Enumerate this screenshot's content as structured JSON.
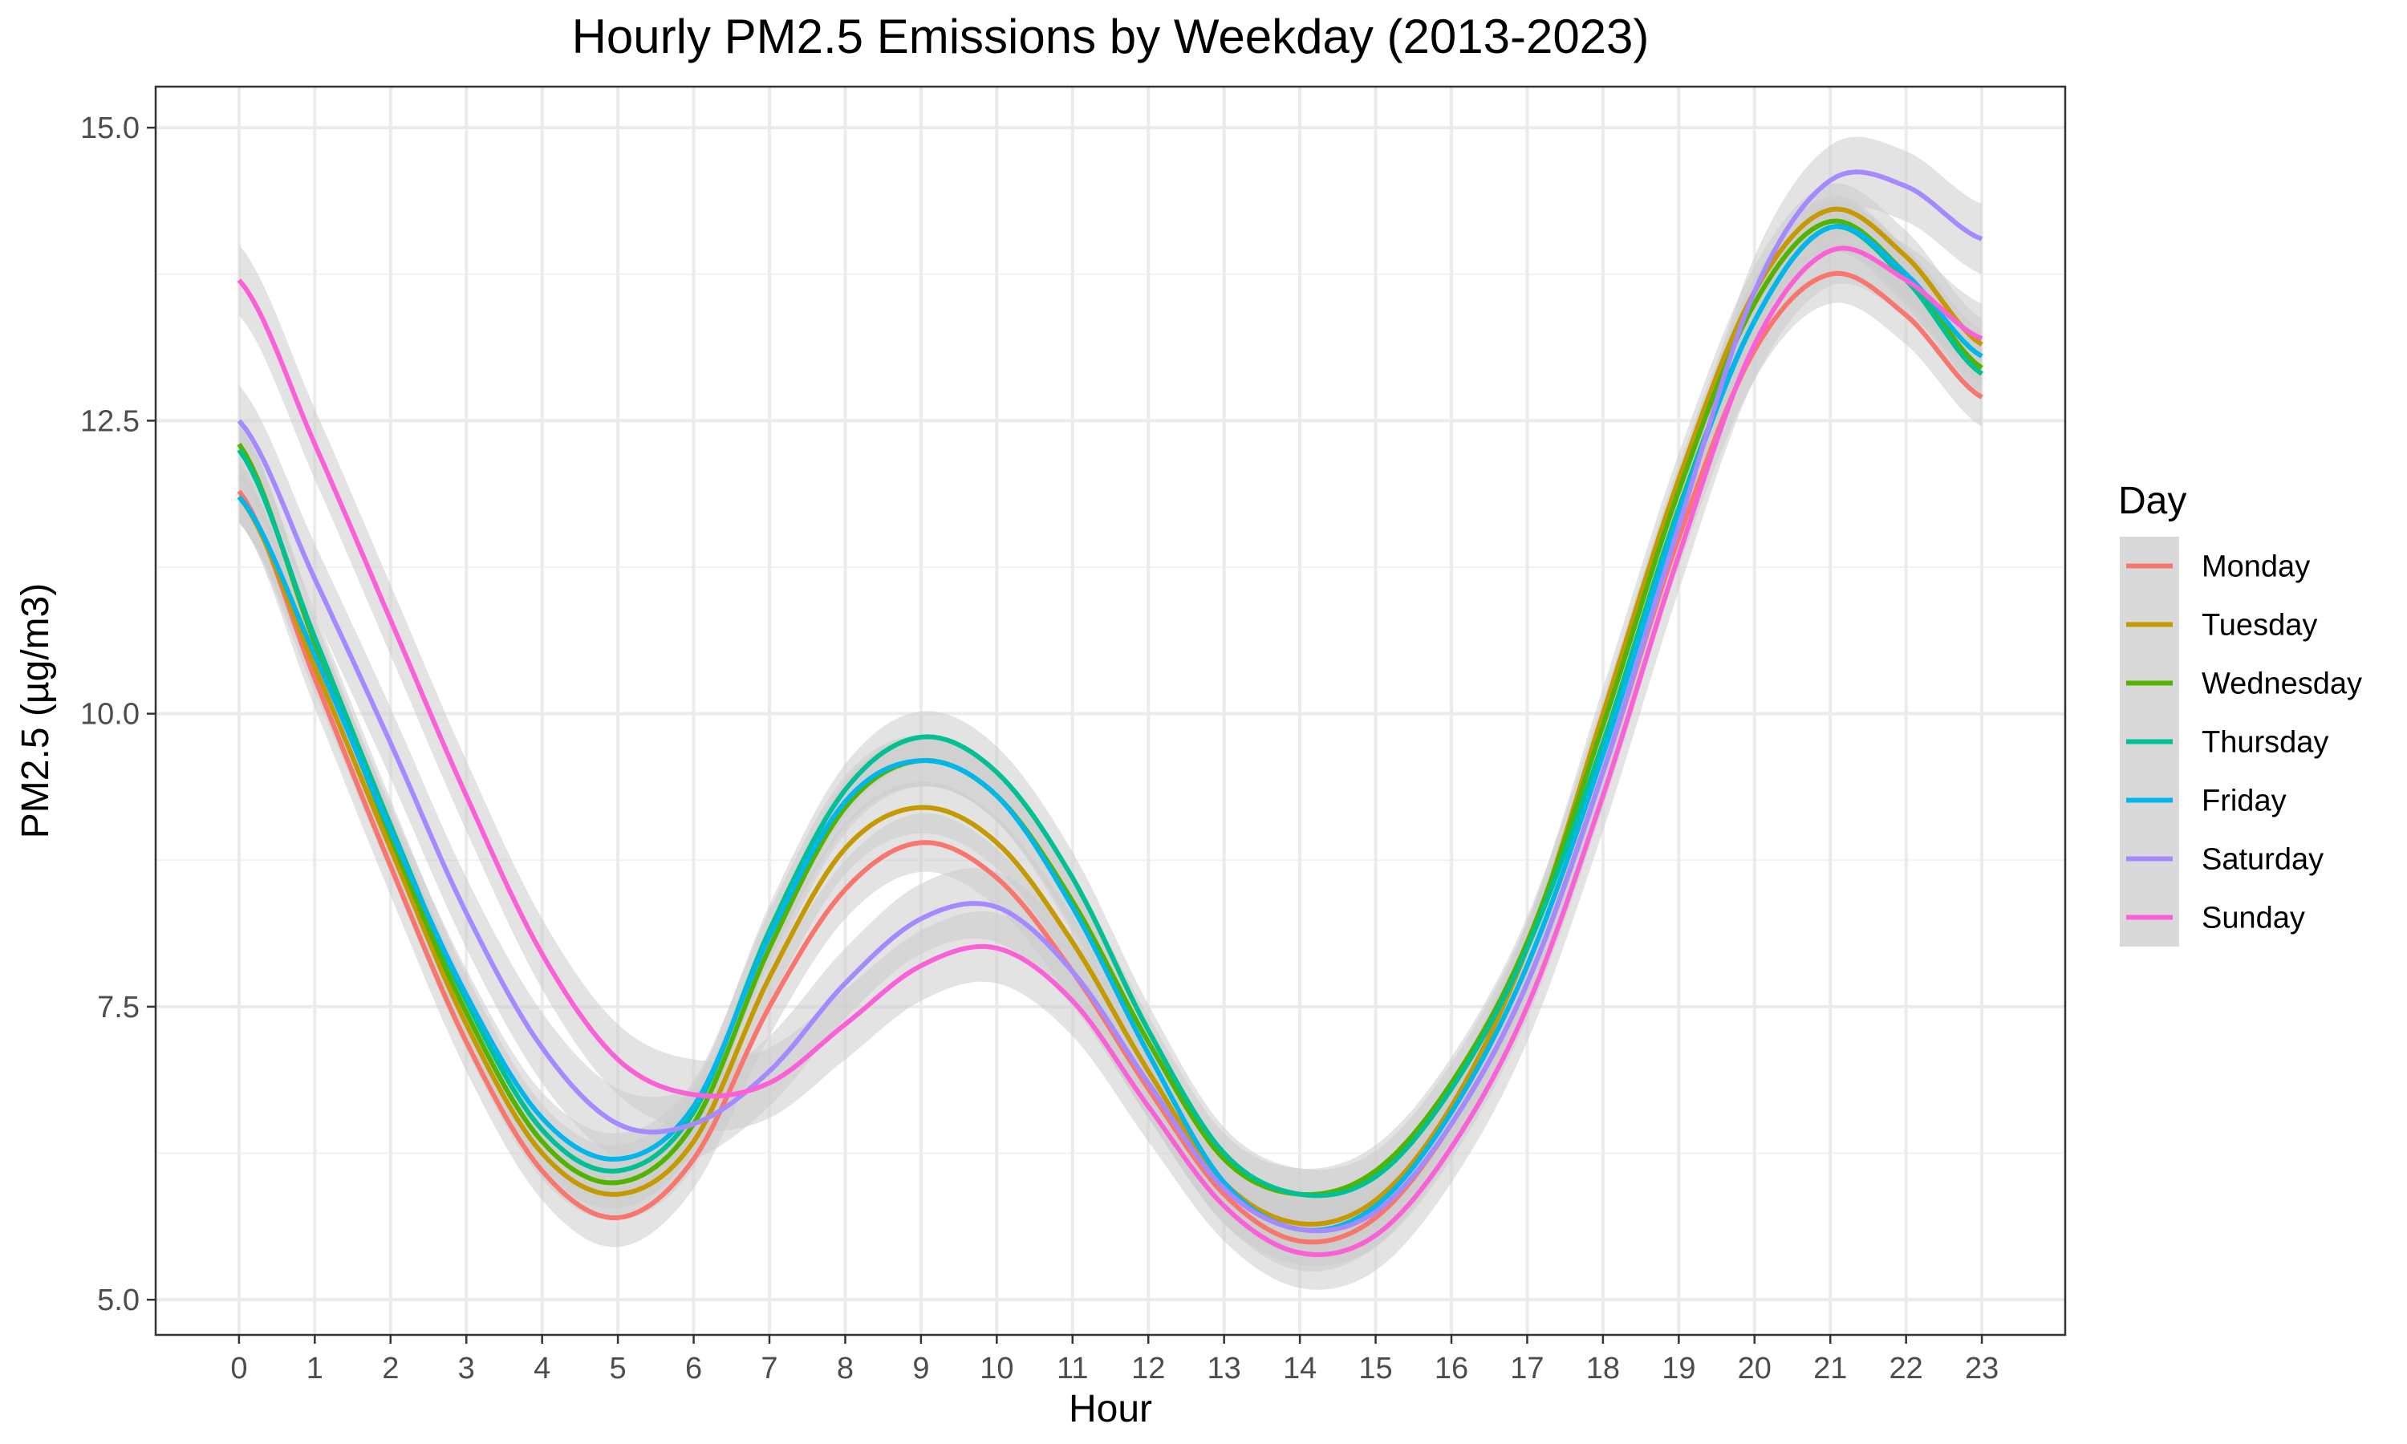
{
  "chart_data": {
    "type": "line",
    "title": "Hourly PM2.5 Emissions by Weekday (2013-2023)",
    "xlabel": "Hour",
    "ylabel": "PM2.5 (µg/m3)",
    "xlim": [
      -1.1,
      24.1
    ],
    "ylim": [
      4.7,
      15.35
    ],
    "x_ticks": [
      0,
      1,
      2,
      3,
      4,
      5,
      6,
      7,
      8,
      9,
      10,
      11,
      12,
      13,
      14,
      15,
      16,
      17,
      18,
      19,
      20,
      21,
      22,
      23
    ],
    "y_ticks": [
      5.0,
      7.5,
      10.0,
      12.5,
      15.0
    ],
    "y_tick_labels": [
      "5.0",
      "7.5",
      "10.0",
      "12.5",
      "15.0"
    ],
    "grid": true,
    "smoothed_with_confidence_band": true,
    "band_color": "#cccccc",
    "legend": {
      "title": "Day",
      "position": "right"
    },
    "x": [
      0,
      1,
      2,
      3,
      4,
      5,
      6,
      7,
      8,
      9,
      10,
      11,
      12,
      13,
      14,
      15,
      16,
      17,
      18,
      19,
      20,
      21,
      22,
      23
    ],
    "series": [
      {
        "name": "Monday",
        "color": "#F8766D",
        "values": [
          11.9,
          10.3,
          8.7,
          7.2,
          6.1,
          5.7,
          6.2,
          7.5,
          8.5,
          8.9,
          8.6,
          7.8,
          6.8,
          5.9,
          5.5,
          5.7,
          6.5,
          7.7,
          9.5,
          11.5,
          13.1,
          13.75,
          13.4,
          12.7
        ],
        "band": 0.25
      },
      {
        "name": "Tuesday",
        "color": "#C49A00",
        "values": [
          11.85,
          10.4,
          8.85,
          7.35,
          6.25,
          5.9,
          6.35,
          7.75,
          8.85,
          9.2,
          8.9,
          8.05,
          6.95,
          6.0,
          5.65,
          5.85,
          6.65,
          8.0,
          10.0,
          12.0,
          13.6,
          14.3,
          13.9,
          13.15
        ],
        "band": 0.22
      },
      {
        "name": "Wednesday",
        "color": "#53B400",
        "values": [
          12.3,
          10.6,
          8.95,
          7.45,
          6.35,
          6.0,
          6.5,
          8.0,
          9.2,
          9.6,
          9.3,
          8.4,
          7.2,
          6.2,
          5.9,
          6.1,
          6.85,
          8.05,
          9.9,
          11.9,
          13.5,
          14.2,
          13.75,
          12.95
        ],
        "band": 0.22
      },
      {
        "name": "Thursday",
        "color": "#00C094",
        "values": [
          12.25,
          10.65,
          9.05,
          7.55,
          6.45,
          6.1,
          6.6,
          8.15,
          9.35,
          9.8,
          9.5,
          8.6,
          7.3,
          6.25,
          5.9,
          6.05,
          6.8,
          8.0,
          9.75,
          11.75,
          13.35,
          14.15,
          13.7,
          12.9
        ],
        "band": 0.22
      },
      {
        "name": "Friday",
        "color": "#00B6EB",
        "values": [
          11.85,
          10.5,
          9.0,
          7.6,
          6.55,
          6.2,
          6.65,
          8.1,
          9.25,
          9.6,
          9.3,
          8.35,
          7.1,
          6.0,
          5.6,
          5.8,
          6.6,
          7.85,
          9.65,
          11.7,
          13.35,
          14.15,
          13.75,
          13.05
        ],
        "band": 0.22
      },
      {
        "name": "Saturday",
        "color": "#A58AFF",
        "values": [
          12.5,
          11.15,
          9.75,
          8.3,
          7.15,
          6.5,
          6.5,
          6.95,
          7.7,
          8.25,
          8.35,
          7.8,
          6.85,
          5.95,
          5.6,
          5.75,
          6.5,
          7.7,
          9.5,
          11.6,
          13.6,
          14.55,
          14.5,
          14.05
        ],
        "band": 0.3
      },
      {
        "name": "Sunday",
        "color": "#FB61D7",
        "values": [
          13.7,
          12.3,
          10.8,
          9.3,
          7.95,
          7.05,
          6.75,
          6.85,
          7.35,
          7.85,
          8.0,
          7.55,
          6.65,
          5.8,
          5.4,
          5.55,
          6.3,
          7.5,
          9.3,
          11.35,
          13.15,
          13.95,
          13.7,
          13.2
        ],
        "band": 0.3
      }
    ]
  }
}
